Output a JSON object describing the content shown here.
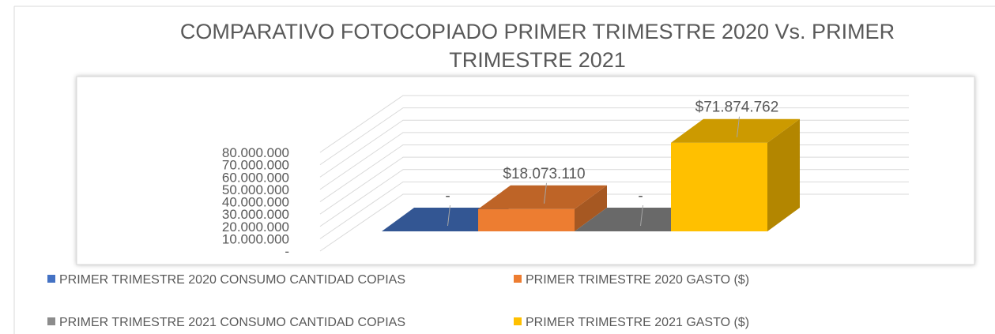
{
  "chart_data": {
    "type": "bar3d",
    "title": "COMPARATIVO FOTOCOPIADO PRIMER TRIMESTRE 2020 Vs. PRIMER TRIMESTRE 2021",
    "ylim": [
      0,
      80000000
    ],
    "yticks": [
      {
        "value": 0,
        "label": "-"
      },
      {
        "value": 10000000,
        "label": "10.000.000"
      },
      {
        "value": 20000000,
        "label": "20.000.000"
      },
      {
        "value": 30000000,
        "label": "30.000.000"
      },
      {
        "value": 40000000,
        "label": "40.000.000"
      },
      {
        "value": 50000000,
        "label": "50.000.000"
      },
      {
        "value": 60000000,
        "label": "60.000.000"
      },
      {
        "value": 70000000,
        "label": "70.000.000"
      },
      {
        "value": 80000000,
        "label": "80.000.000"
      }
    ],
    "grid": true,
    "series": [
      {
        "name": "PRIMER TRIMESTRE 2020 CONSUMO CANTIDAD COPIAS",
        "color": "#4472c4",
        "values": [
          0
        ],
        "value_labels": [
          "-"
        ]
      },
      {
        "name": "PRIMER TRIMESTRE 2020  GASTO ($)",
        "color": "#ed7d31",
        "values": [
          18073110
        ],
        "value_labels": [
          "$18.073.110"
        ]
      },
      {
        "name": "PRIMER TRIMESTRE 2021 CONSUMO CANTIDAD COPIAS",
        "color": "#8c8c8c",
        "values": [
          0
        ],
        "value_labels": [
          "-"
        ]
      },
      {
        "name": "PRIMER TRIMESTRE 2021  GASTO ($)",
        "color": "#ffc000",
        "values": [
          71874762
        ],
        "value_labels": [
          "$71.874.762"
        ]
      }
    ]
  }
}
